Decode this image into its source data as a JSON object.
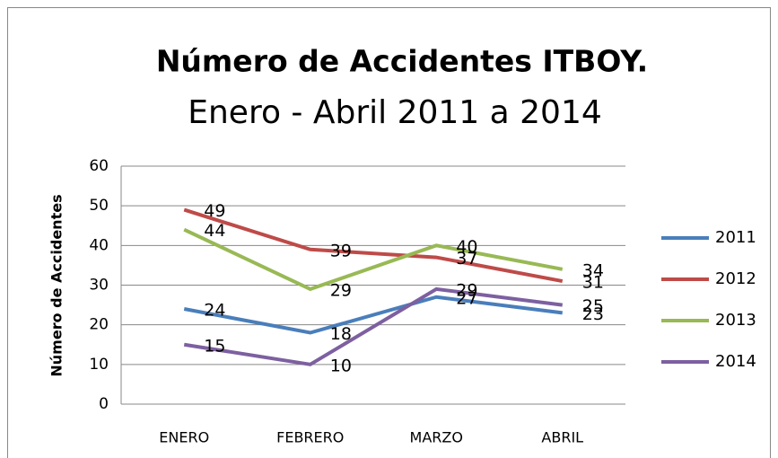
{
  "chart_data": {
    "type": "line",
    "title": "Número de Accidentes ITBOY.",
    "subtitle": "Enero - Abril 2011 a 2014",
    "y_label": "Número de Accidentes",
    "categories": [
      "ENERO",
      "FEBRERO",
      "MARZO",
      "ABRIL"
    ],
    "series": [
      {
        "name": "2011",
        "color": "#4a7ebb",
        "values": [
          24,
          18,
          27,
          23
        ]
      },
      {
        "name": "2012",
        "color": "#be4b48",
        "values": [
          49,
          39,
          37,
          31
        ]
      },
      {
        "name": "2013",
        "color": "#98b954",
        "values": [
          44,
          29,
          40,
          34
        ]
      },
      {
        "name": "2014",
        "color": "#7d60a0",
        "values": [
          15,
          10,
          29,
          25
        ]
      }
    ],
    "ylim": [
      0,
      60
    ],
    "yticks": [
      0,
      10,
      20,
      30,
      40,
      50,
      60
    ],
    "grid": true,
    "legend": "right"
  }
}
